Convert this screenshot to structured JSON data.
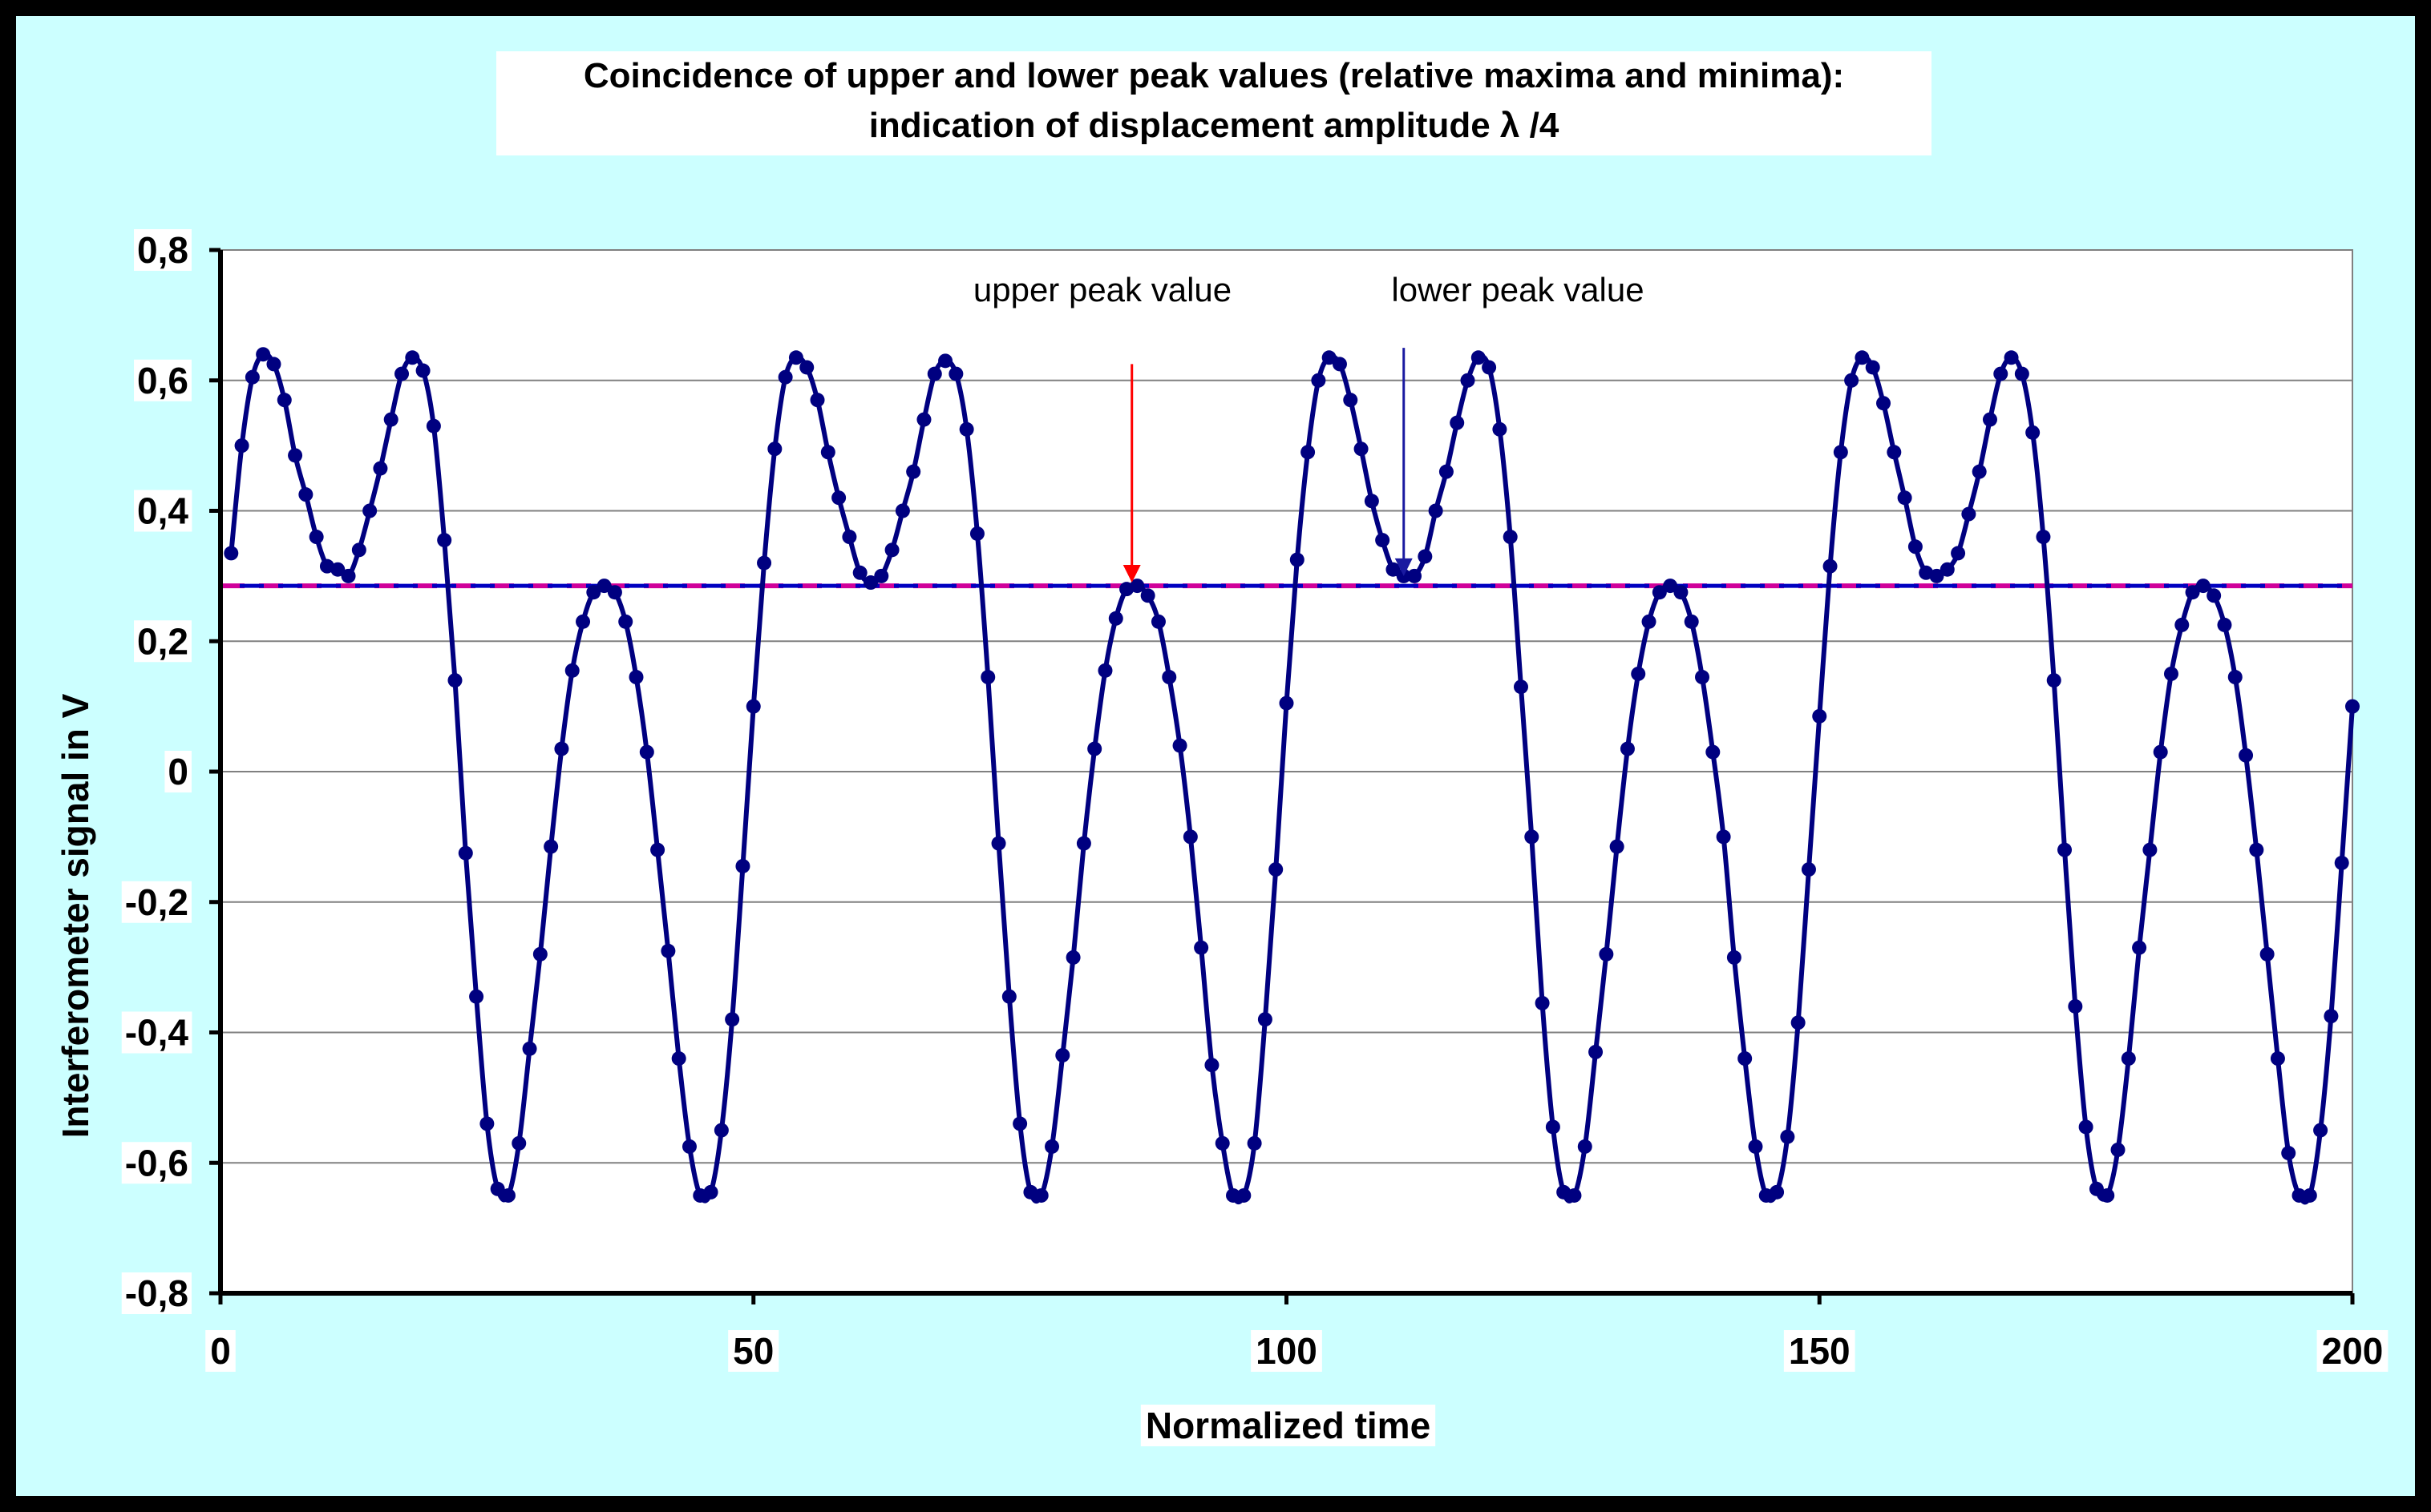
{
  "chart_data": {
    "type": "line",
    "title_line1": "Coincidence of upper and lower peak values (relative maxima and minima):",
    "title_line2": "indication of displacement amplitude λ /4",
    "xlabel": "Normalized time",
    "ylabel": "Interferometer signal in V",
    "xlim": [
      0,
      200
    ],
    "ylim": [
      -0.8,
      0.8
    ],
    "x_ticks": [
      "0",
      "50",
      "100",
      "150",
      "200"
    ],
    "y_ticks": [
      "-0,8",
      "-0,6",
      "-0,4",
      "-0,2",
      "0",
      "0,2",
      "0,4",
      "0,6",
      "0,8"
    ],
    "grid": "horizontal",
    "series": [
      {
        "x": [
          1,
          2,
          3,
          4,
          5,
          6,
          7,
          8,
          9,
          10,
          11,
          12,
          13,
          14,
          15,
          16,
          17,
          18,
          19,
          20,
          21,
          22,
          23,
          24,
          25,
          26,
          27,
          28,
          29,
          30,
          31,
          32,
          33,
          34,
          35,
          36,
          37,
          38,
          39,
          40,
          41,
          42,
          43,
          44,
          45,
          46,
          47,
          48,
          49,
          50,
          51,
          52,
          53,
          54,
          55,
          56,
          57,
          58,
          59,
          60,
          61,
          62,
          63,
          64,
          65,
          66,
          67,
          68,
          69,
          70,
          71,
          72,
          73,
          74,
          75,
          76,
          77,
          78,
          79,
          80,
          81,
          82,
          83,
          84,
          85,
          86,
          87,
          88,
          89,
          90,
          91,
          92,
          93,
          94,
          95,
          96,
          97,
          98,
          99,
          100,
          101,
          102,
          103,
          104,
          105,
          106,
          107,
          108,
          109,
          110,
          111,
          112,
          113,
          114,
          115,
          116,
          117,
          118,
          119,
          120,
          121,
          122,
          123,
          124,
          125,
          126,
          127,
          128,
          129,
          130,
          131,
          132,
          133,
          134,
          135,
          136,
          137,
          138,
          139,
          140,
          141,
          142,
          143,
          144,
          145,
          146,
          147,
          148,
          149,
          150,
          151,
          152,
          153,
          154,
          155,
          156,
          157,
          158,
          159,
          160,
          161,
          162,
          163,
          164,
          165,
          166,
          167,
          168,
          169,
          170,
          171,
          172,
          173,
          174,
          175,
          176,
          177,
          178,
          179,
          180,
          181,
          182,
          183,
          184,
          185,
          186,
          187,
          188,
          189,
          190,
          191,
          192,
          193,
          194,
          195,
          196,
          197,
          198,
          199,
          200
        ],
        "y": [
          0.335,
          0.5,
          0.605,
          0.64,
          0.625,
          0.57,
          0.485,
          0.425,
          0.36,
          0.315,
          0.31,
          0.3,
          0.34,
          0.4,
          0.465,
          0.54,
          0.61,
          0.635,
          0.615,
          0.53,
          0.355,
          0.14,
          -0.125,
          -0.345,
          -0.54,
          -0.64,
          -0.65,
          -0.57,
          -0.425,
          -0.28,
          -0.115,
          0.035,
          0.155,
          0.23,
          0.275,
          0.285,
          0.275,
          0.23,
          0.145,
          0.03,
          -0.12,
          -0.275,
          -0.44,
          -0.575,
          -0.65,
          -0.645,
          -0.55,
          -0.38,
          -0.145,
          0.1,
          0.32,
          0.495,
          0.605,
          0.635,
          0.62,
          0.57,
          0.49,
          0.42,
          0.36,
          0.305,
          0.29,
          0.3,
          0.34,
          0.4,
          0.46,
          0.54,
          0.61,
          0.63,
          0.61,
          0.525,
          0.365,
          0.145,
          -0.11,
          -0.345,
          -0.54,
          -0.645,
          -0.65,
          -0.575,
          -0.435,
          -0.285,
          -0.11,
          0.035,
          0.155,
          0.235,
          0.28,
          0.285,
          0.27,
          0.23,
          0.145,
          0.04,
          -0.1,
          -0.27,
          -0.45,
          -0.57,
          -0.65,
          -0.65,
          -0.57,
          -0.38,
          -0.15,
          0.105,
          0.325,
          0.49,
          0.6,
          0.635,
          0.625,
          0.57,
          0.495,
          0.415,
          0.355,
          0.31,
          0.3,
          0.3,
          0.33,
          0.4,
          0.46,
          0.535,
          0.6,
          0.635,
          0.62,
          0.525,
          0.36,
          0.13,
          -0.1,
          -0.355,
          -0.545,
          -0.645,
          -0.65,
          -0.575,
          -0.43,
          -0.28,
          -0.115,
          0.035,
          0.15,
          0.23,
          0.275,
          0.285,
          0.275,
          0.23,
          0.145,
          0.03,
          -0.1,
          -0.285,
          -0.44,
          -0.575,
          -0.65,
          -0.645,
          -0.56,
          -0.385,
          -0.15,
          0.085,
          0.315,
          0.49,
          0.6,
          0.635,
          0.62,
          0.565,
          0.49,
          0.42,
          0.345,
          0.305,
          0.3,
          0.31,
          0.335,
          0.395,
          0.46,
          0.54,
          0.61,
          0.635,
          0.61,
          0.52,
          0.36,
          0.14,
          -0.12,
          -0.36,
          -0.545,
          -0.64,
          -0.65,
          -0.58,
          -0.44,
          -0.27,
          -0.12,
          0.03,
          0.15,
          0.225,
          0.275,
          0.285,
          0.27,
          0.225,
          0.145,
          0.025,
          -0.12,
          -0.28,
          -0.44,
          -0.585,
          -0.65,
          -0.65,
          -0.55,
          -0.375,
          -0.14,
          0.1
        ]
      }
    ],
    "reference_level": 0.285,
    "annotations": [
      {
        "label": "upper peak value",
        "x": 85.5,
        "y_top": 0.625,
        "y_bottom": 0.29,
        "color": "#ff0000"
      },
      {
        "label": "lower peak value",
        "x": 111,
        "y_top": 0.65,
        "y_bottom": 0.3,
        "color": "#1a1aa0"
      }
    ],
    "colors": {
      "series": "#000080",
      "reference_line_1": "#d0009a",
      "reference_line_2": "#0000c0",
      "background": "#ccffff",
      "frame": "#000000"
    }
  }
}
